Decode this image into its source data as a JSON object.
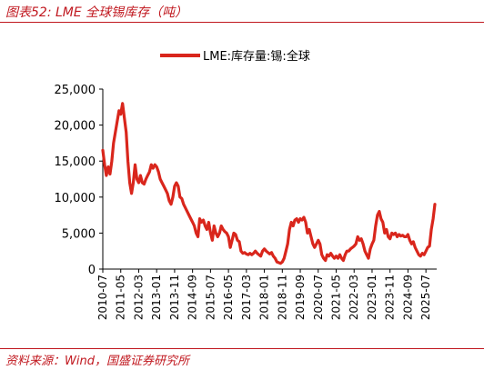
{
  "figure_title": "图表52:  LME 全球锡库存（吨）",
  "source": "资料来源：Wind，国盛证券研究所",
  "colors": {
    "accent": "#c0171e",
    "series": "#d9261c"
  },
  "chart_data": {
    "type": "line",
    "title": "",
    "xlabel": "",
    "ylabel": "",
    "ylim": [
      0,
      25000
    ],
    "yticks": [
      {
        "value": 0,
        "label": "0"
      },
      {
        "value": 5000,
        "label": "5,000"
      },
      {
        "value": 10000,
        "label": "10,000"
      },
      {
        "value": 15000,
        "label": "15,000"
      },
      {
        "value": 20000,
        "label": "20,000"
      },
      {
        "value": 25000,
        "label": "25,000"
      }
    ],
    "xrange": [
      "2010-07",
      "2026-01"
    ],
    "xticks": [
      "2010-07",
      "2011-05",
      "2012-03",
      "2013-01",
      "2013-11",
      "2014-09",
      "2015-07",
      "2016-05",
      "2017-03",
      "2018-01",
      "2018-11",
      "2019-09",
      "2020-07",
      "2021-05",
      "2022-03",
      "2023-01",
      "2023-11",
      "2024-09",
      "2025-07"
    ],
    "legend": {
      "position": "top-center"
    },
    "grid": false,
    "series": [
      {
        "name": "LME:库存量:锡:全球",
        "points": [
          [
            "2010-07",
            16500
          ],
          [
            "2010-08",
            14500
          ],
          [
            "2010-09",
            13000
          ],
          [
            "2010-10",
            14200
          ],
          [
            "2010-11",
            13200
          ],
          [
            "2010-12",
            15000
          ],
          [
            "2011-01",
            17500
          ],
          [
            "2011-02",
            19000
          ],
          [
            "2011-03",
            20500
          ],
          [
            "2011-04",
            22000
          ],
          [
            "2011-05",
            21500
          ],
          [
            "2011-06",
            23000
          ],
          [
            "2011-07",
            21000
          ],
          [
            "2011-08",
            19000
          ],
          [
            "2011-09",
            15000
          ],
          [
            "2011-10",
            12000
          ],
          [
            "2011-11",
            10500
          ],
          [
            "2011-12",
            12000
          ],
          [
            "2012-01",
            14500
          ],
          [
            "2012-02",
            12500
          ],
          [
            "2012-03",
            12000
          ],
          [
            "2012-04",
            13000
          ],
          [
            "2012-05",
            12000
          ],
          [
            "2012-06",
            11800
          ],
          [
            "2012-07",
            12500
          ],
          [
            "2012-08",
            13000
          ],
          [
            "2012-09",
            13500
          ],
          [
            "2012-10",
            14500
          ],
          [
            "2012-11",
            14000
          ],
          [
            "2012-12",
            14500
          ],
          [
            "2013-01",
            14200
          ],
          [
            "2013-02",
            13500
          ],
          [
            "2013-03",
            12500
          ],
          [
            "2013-04",
            12000
          ],
          [
            "2013-05",
            11500
          ],
          [
            "2013-06",
            11000
          ],
          [
            "2013-07",
            10500
          ],
          [
            "2013-08",
            9500
          ],
          [
            "2013-09",
            9000
          ],
          [
            "2013-10",
            10000
          ],
          [
            "2013-11",
            11500
          ],
          [
            "2013-12",
            12000
          ],
          [
            "2014-01",
            11500
          ],
          [
            "2014-02",
            10000
          ],
          [
            "2014-03",
            9800
          ],
          [
            "2014-04",
            9000
          ],
          [
            "2014-05",
            8500
          ],
          [
            "2014-06",
            8000
          ],
          [
            "2014-07",
            7500
          ],
          [
            "2014-08",
            7000
          ],
          [
            "2014-09",
            6500
          ],
          [
            "2014-10",
            6000
          ],
          [
            "2014-11",
            5000
          ],
          [
            "2014-12",
            4500
          ],
          [
            "2015-01",
            7000
          ],
          [
            "2015-02",
            6500
          ],
          [
            "2015-03",
            6800
          ],
          [
            "2015-04",
            6000
          ],
          [
            "2015-05",
            5500
          ],
          [
            "2015-06",
            6500
          ],
          [
            "2015-07",
            5000
          ],
          [
            "2015-08",
            4000
          ],
          [
            "2015-09",
            6000
          ],
          [
            "2015-10",
            5000
          ],
          [
            "2015-11",
            4500
          ],
          [
            "2015-12",
            5000
          ],
          [
            "2016-01",
            6000
          ],
          [
            "2016-02",
            5500
          ],
          [
            "2016-03",
            5200
          ],
          [
            "2016-04",
            5000
          ],
          [
            "2016-05",
            4500
          ],
          [
            "2016-06",
            3000
          ],
          [
            "2016-07",
            4000
          ],
          [
            "2016-08",
            5000
          ],
          [
            "2016-09",
            4800
          ],
          [
            "2016-10",
            4000
          ],
          [
            "2016-11",
            3800
          ],
          [
            "2016-12",
            2500
          ],
          [
            "2017-01",
            2200
          ],
          [
            "2017-02",
            2300
          ],
          [
            "2017-03",
            2100
          ],
          [
            "2017-04",
            2000
          ],
          [
            "2017-05",
            2200
          ],
          [
            "2017-06",
            2000
          ],
          [
            "2017-07",
            2200
          ],
          [
            "2017-08",
            2500
          ],
          [
            "2017-09",
            2200
          ],
          [
            "2017-10",
            2000
          ],
          [
            "2017-11",
            1800
          ],
          [
            "2017-12",
            2500
          ],
          [
            "2018-01",
            2800
          ],
          [
            "2018-02",
            2500
          ],
          [
            "2018-03",
            2300
          ],
          [
            "2018-04",
            2100
          ],
          [
            "2018-05",
            2300
          ],
          [
            "2018-06",
            1800
          ],
          [
            "2018-07",
            1500
          ],
          [
            "2018-08",
            1000
          ],
          [
            "2018-09",
            900
          ],
          [
            "2018-10",
            800
          ],
          [
            "2018-11",
            1000
          ],
          [
            "2018-12",
            1500
          ],
          [
            "2019-01",
            2500
          ],
          [
            "2019-02",
            3500
          ],
          [
            "2019-03",
            5500
          ],
          [
            "2019-04",
            6500
          ],
          [
            "2019-05",
            6000
          ],
          [
            "2019-06",
            6800
          ],
          [
            "2019-07",
            7000
          ],
          [
            "2019-08",
            6500
          ],
          [
            "2019-09",
            7000
          ],
          [
            "2019-10",
            6800
          ],
          [
            "2019-11",
            7200
          ],
          [
            "2019-12",
            6500
          ],
          [
            "2020-01",
            5000
          ],
          [
            "2020-02",
            5500
          ],
          [
            "2020-03",
            4500
          ],
          [
            "2020-04",
            3500
          ],
          [
            "2020-05",
            3000
          ],
          [
            "2020-06",
            3500
          ],
          [
            "2020-07",
            4000
          ],
          [
            "2020-08",
            3500
          ],
          [
            "2020-09",
            2000
          ],
          [
            "2020-10",
            1500
          ],
          [
            "2020-11",
            1200
          ],
          [
            "2020-12",
            2000
          ],
          [
            "2021-01",
            1800
          ],
          [
            "2021-02",
            2200
          ],
          [
            "2021-03",
            1800
          ],
          [
            "2021-04",
            1500
          ],
          [
            "2021-05",
            1800
          ],
          [
            "2021-06",
            1500
          ],
          [
            "2021-07",
            2000
          ],
          [
            "2021-08",
            1500
          ],
          [
            "2021-09",
            1200
          ],
          [
            "2021-10",
            2000
          ],
          [
            "2021-11",
            2500
          ],
          [
            "2021-12",
            2500
          ],
          [
            "2022-01",
            2800
          ],
          [
            "2022-02",
            3000
          ],
          [
            "2022-03",
            3200
          ],
          [
            "2022-04",
            3500
          ],
          [
            "2022-05",
            4500
          ],
          [
            "2022-06",
            4000
          ],
          [
            "2022-07",
            4200
          ],
          [
            "2022-08",
            3500
          ],
          [
            "2022-09",
            2500
          ],
          [
            "2022-10",
            2000
          ],
          [
            "2022-11",
            1500
          ],
          [
            "2022-12",
            2800
          ],
          [
            "2023-01",
            3500
          ],
          [
            "2023-02",
            4000
          ],
          [
            "2023-03",
            6000
          ],
          [
            "2023-04",
            7500
          ],
          [
            "2023-05",
            8000
          ],
          [
            "2023-06",
            7000
          ],
          [
            "2023-07",
            6500
          ],
          [
            "2023-08",
            5000
          ],
          [
            "2023-09",
            5500
          ],
          [
            "2023-10",
            4500
          ],
          [
            "2023-11",
            4200
          ],
          [
            "2023-12",
            5000
          ],
          [
            "2024-01",
            4800
          ],
          [
            "2024-02",
            5000
          ],
          [
            "2024-03",
            4500
          ],
          [
            "2024-04",
            4800
          ],
          [
            "2024-05",
            4600
          ],
          [
            "2024-06",
            4700
          ],
          [
            "2024-07",
            4500
          ],
          [
            "2024-08",
            4500
          ],
          [
            "2024-09",
            4800
          ],
          [
            "2024-10",
            4000
          ],
          [
            "2024-11",
            3500
          ],
          [
            "2024-12",
            3800
          ],
          [
            "2025-01",
            3000
          ],
          [
            "2025-02",
            2500
          ],
          [
            "2025-03",
            2000
          ],
          [
            "2025-04",
            1800
          ],
          [
            "2025-05",
            2200
          ],
          [
            "2025-06",
            2000
          ],
          [
            "2025-07",
            2500
          ],
          [
            "2025-08",
            3000
          ],
          [
            "2025-09",
            3200
          ],
          [
            "2025-10",
            5500
          ],
          [
            "2025-11",
            7000
          ],
          [
            "2025-12",
            9000
          ]
        ]
      }
    ]
  }
}
